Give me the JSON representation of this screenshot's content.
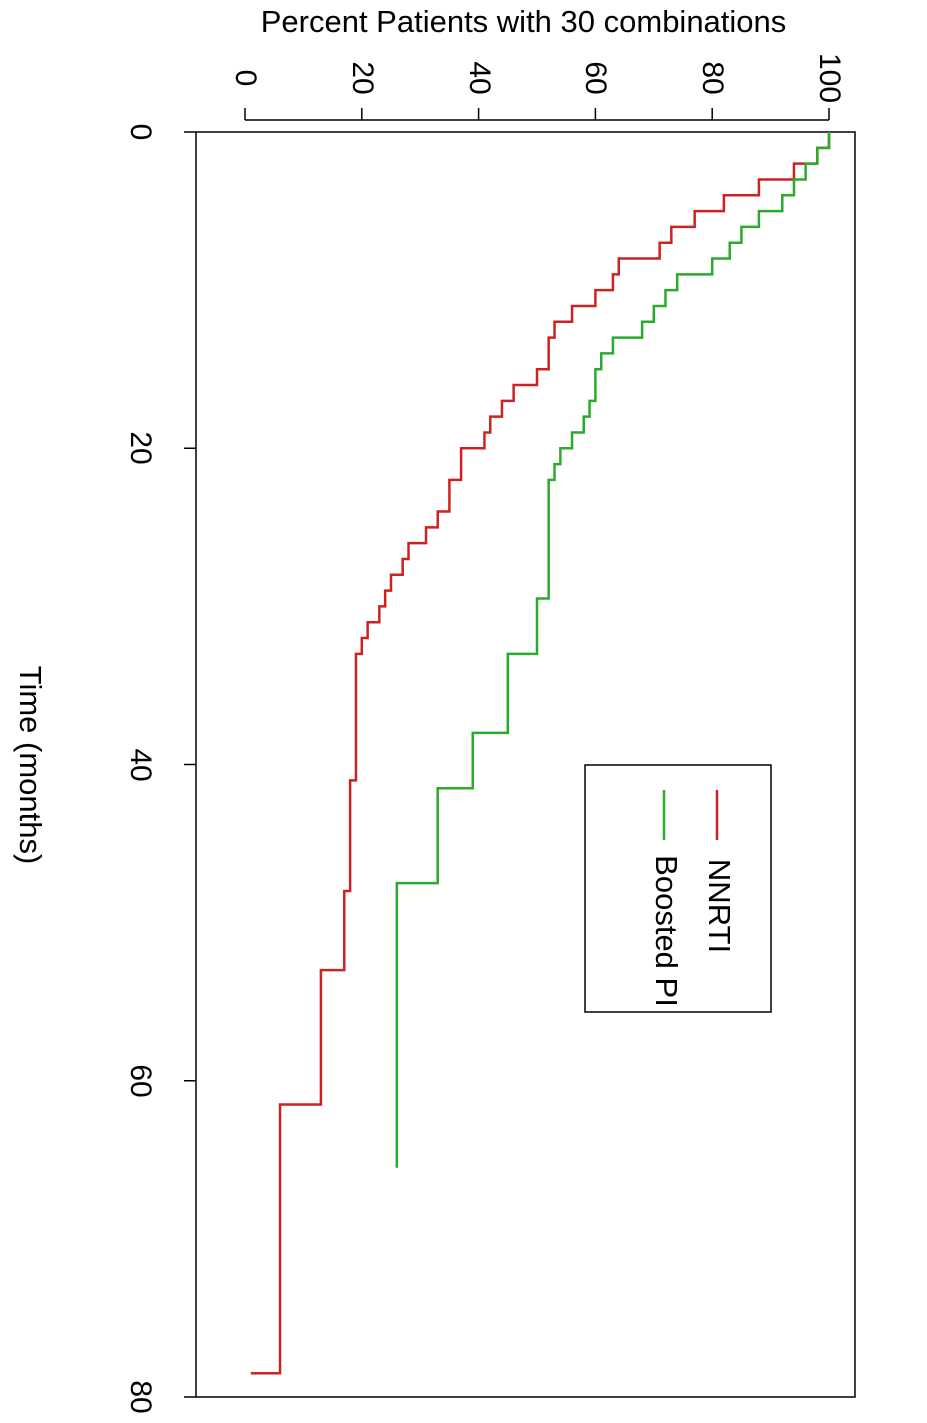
{
  "chart_data": {
    "type": "line",
    "title": "Percent Patients with 30 combinations",
    "xlabel": "Time (months)",
    "ylabel": "",
    "x_ticks": [
      "0",
      "20",
      "40",
      "60",
      "80"
    ],
    "y_ticks": [
      "0",
      "20",
      "40",
      "60",
      "80",
      "100"
    ],
    "xlim": [
      0,
      80
    ],
    "ylim": [
      0,
      100
    ],
    "grid": false,
    "legend_position": "right",
    "series": [
      {
        "name": "NNRTI",
        "color": "#cc2222",
        "x": [
          0,
          1,
          2,
          3,
          4,
          5,
          6,
          7,
          8,
          9,
          10,
          11,
          12,
          13,
          14,
          15,
          16,
          17,
          18,
          19,
          20,
          22,
          24,
          25,
          26,
          27,
          28,
          29,
          30,
          31,
          32,
          33,
          41,
          48,
          53,
          61.5,
          78.5
        ],
        "y": [
          100,
          98,
          94,
          88,
          82,
          77,
          73,
          71,
          64,
          63,
          60,
          56,
          53,
          52,
          52,
          50,
          46,
          44,
          42,
          41,
          37,
          35,
          33,
          31,
          28,
          27,
          25,
          24,
          23,
          21,
          20,
          19,
          18,
          17,
          13,
          6,
          1
        ]
      },
      {
        "name": "Boosted PI",
        "color": "#2bab2b",
        "x": [
          0,
          1,
          2,
          3,
          4,
          5,
          6,
          7,
          8,
          9,
          10,
          11,
          12,
          13,
          14,
          15,
          16,
          17,
          18,
          19,
          20,
          21,
          22,
          29.5,
          33,
          38,
          41.5,
          47.5,
          65.5
        ],
        "y": [
          100,
          98,
          96,
          94,
          92,
          88,
          85,
          83,
          80,
          74,
          72,
          70,
          68,
          63,
          61,
          60,
          60,
          59,
          58,
          56,
          54,
          53,
          52,
          50,
          45,
          39,
          33,
          26,
          26
        ]
      }
    ]
  }
}
